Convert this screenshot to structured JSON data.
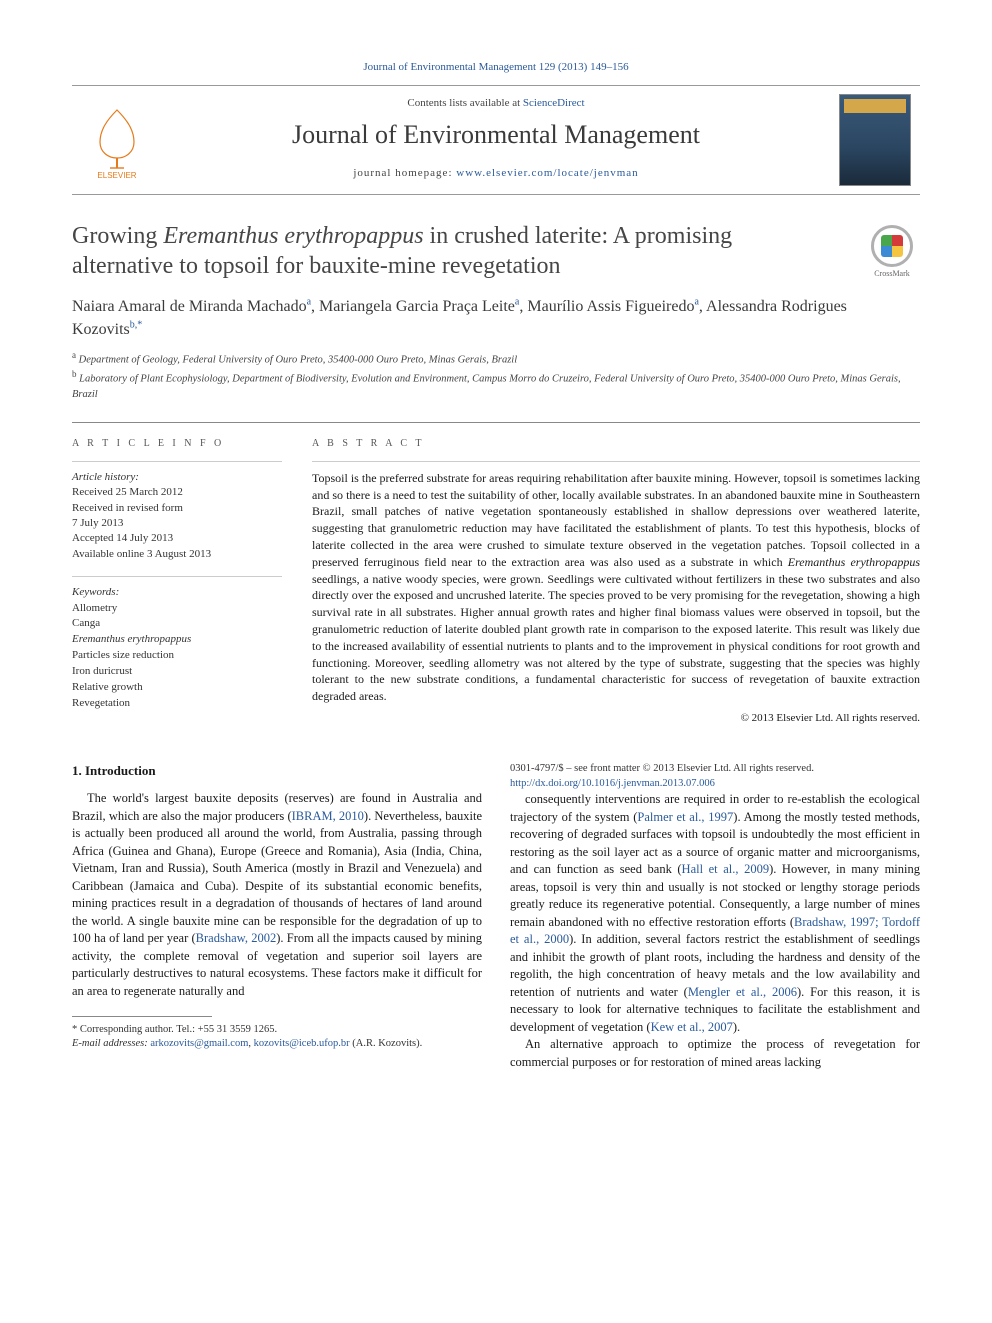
{
  "citation": "Journal of Environmental Management 129 (2013) 149–156",
  "masthead": {
    "contents_prefix": "Contents lists available at ",
    "contents_link": "ScienceDirect",
    "journal_name": "Journal of Environmental Management",
    "homepage_prefix": "journal homepage: ",
    "homepage_url": "www.elsevier.com/locate/jenvman",
    "publisher": "ELSEVIER"
  },
  "title_plain": "Growing Eremanthus erythropappus in crushed laterite: A promising alternative to topsoil for bauxite-mine revegetation",
  "title_html": "Growing <em>Eremanthus erythropappus</em> in crushed laterite: A promising alternative to topsoil for bauxite-mine revegetation",
  "crossmark_label": "CrossMark",
  "authors_html": "Naiara Amaral de Miranda Machado<sup>a</sup>, Mariangela Garcia Praça Leite<sup>a</sup>, Maurílio Assis Figueiredo<sup>a</sup>, Alessandra Rodrigues Kozovits<sup>b,*</sup>",
  "affiliations": [
    {
      "marker": "a",
      "text": "Department of Geology, Federal University of Ouro Preto, 35400-000 Ouro Preto, Minas Gerais, Brazil"
    },
    {
      "marker": "b",
      "text": "Laboratory of Plant Ecophysiology, Department of Biodiversity, Evolution and Environment, Campus Morro do Cruzeiro, Federal University of Ouro Preto, 35400-000 Ouro Preto, Minas Gerais, Brazil"
    }
  ],
  "article_info": {
    "label": "A R T I C L E  I N F O",
    "history_heading": "Article history:",
    "history": [
      "Received 25 March 2012",
      "Received in revised form",
      "7 July 2013",
      "Accepted 14 July 2013",
      "Available online 3 August 2013"
    ],
    "keywords_heading": "Keywords:",
    "keywords": [
      "Allometry",
      "Canga",
      "Eremanthus erythropappus",
      "Particles size reduction",
      "Iron duricrust",
      "Relative growth",
      "Revegetation"
    ]
  },
  "abstract": {
    "label": "A B S T R A C T",
    "text_html": "Topsoil is the preferred substrate for areas requiring rehabilitation after bauxite mining. However, topsoil is sometimes lacking and so there is a need to test the suitability of other, locally available substrates. In an abandoned bauxite mine in Southeastern Brazil, small patches of native vegetation spontaneously established in shallow depressions over weathered laterite, suggesting that granulometric reduction may have facilitated the establishment of plants. To test this hypothesis, blocks of laterite collected in the area were crushed to simulate texture observed in the vegetation patches. Topsoil collected in a preserved ferruginous field near to the extraction area was also used as a substrate in which <em>Eremanthus erythropappus</em> seedlings, a native woody species, were grown. Seedlings were cultivated without fertilizers in these two substrates and also directly over the exposed and uncrushed laterite. The species proved to be very promising for the revegetation, showing a high survival rate in all substrates. Higher annual growth rates and higher final biomass values were observed in topsoil, but the granulometric reduction of laterite doubled plant growth rate in comparison to the exposed laterite. This result was likely due to the increased availability of essential nutrients to plants and to the improvement in physical conditions for root growth and functioning. Moreover, seedling allometry was not altered by the type of substrate, suggesting that the species was highly tolerant to the new substrate conditions, a fundamental characteristic for success of revegetation of bauxite extraction degraded areas.",
    "copyright": "© 2013 Elsevier Ltd. All rights reserved."
  },
  "body": {
    "section_heading": "1. Introduction",
    "p1_html": "The world's largest bauxite deposits (reserves) are found in Australia and Brazil, which are also the major producers (<span class='cite-link'>IBRAM, 2010</span>). Nevertheless, bauxite is actually been produced all around the world, from Australia, passing through Africa (Guinea and Ghana), Europe (Greece and Romania), Asia (India, China, Vietnam, Iran and Russia), South America (mostly in Brazil and Venezuela) and Caribbean (Jamaica and Cuba). Despite of its substantial economic benefits, mining practices result in a degradation of thousands of hectares of land around the world. A single bauxite mine can be responsible for the degradation of up to 100 ha of land per year (<span class='cite-link'>Bradshaw, 2002</span>). From all the impacts caused by mining activity, the complete removal of vegetation and superior soil layers are particularly destructives to natural ecosystems. These factors make it difficult for an area to regenerate naturally and",
    "p2_html": "consequently interventions are required in order to re-establish the ecological trajectory of the system (<span class='cite-link'>Palmer et al., 1997</span>). Among the mostly tested methods, recovering of degraded surfaces with topsoil is undoubtedly the most efficient in restoring as the soil layer act as a source of organic matter and microorganisms, and can function as seed bank (<span class='cite-link'>Hall et al., 2009</span>). However, in many mining areas, topsoil is very thin and usually is not stocked or lengthy storage periods greatly reduce its regenerative potential. Consequently, a large number of mines remain abandoned with no effective restoration efforts (<span class='cite-link'>Bradshaw, 1997; Tordoff et al., 2000</span>). In addition, several factors restrict the establishment of seedlings and inhibit the growth of plant roots, including the hardness and density of the regolith, the high concentration of heavy metals and the low availability and retention of nutrients and water (<span class='cite-link'>Mengler et al., 2006</span>). For this reason, it is necessary to look for alternative techniques to facilitate the establishment and development of vegetation (<span class='cite-link'>Kew et al., 2007</span>).",
    "p3_html": "An alternative approach to optimize the process of revegetation for commercial purposes or for restoration of mined areas lacking"
  },
  "footnotes": {
    "corresponding": "* Corresponding author. Tel.: +55 31 3559 1265.",
    "emails_label": "E-mail addresses:",
    "emails_html": "<a>arkozovits@gmail.com</a>, <a>kozovits@iceb.ufop.br</a> (A.R. Kozovits)."
  },
  "footer": {
    "line1": "0301-4797/$ – see front matter © 2013 Elsevier Ltd. All rights reserved.",
    "doi": "http://dx.doi.org/10.1016/j.jenvman.2013.07.006"
  },
  "colors": {
    "link": "#2a5a9a",
    "text": "#1a1a1a",
    "heading": "#464646",
    "rule": "#888888"
  }
}
